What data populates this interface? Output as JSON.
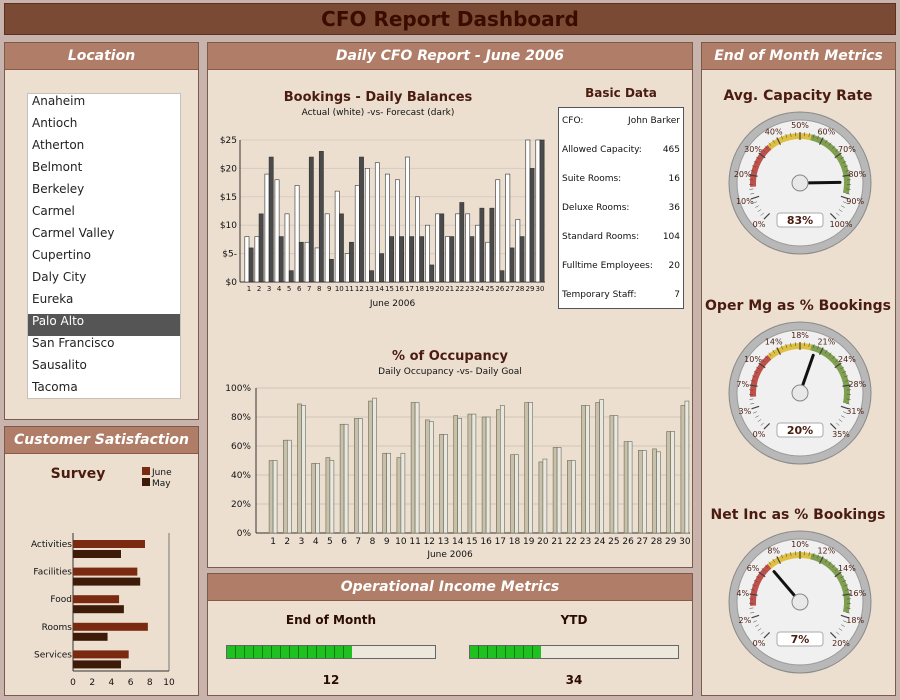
{
  "header": {
    "title": "CFO Report Dashboard"
  },
  "location": {
    "title": "Location",
    "items": [
      "Anaheim",
      "Antioch",
      "Atherton",
      "Belmont",
      "Berkeley",
      "Carmel",
      "Carmel Valley",
      "Cupertino",
      "Daly City",
      "Eureka",
      "Palo Alto",
      "San Francisco",
      "Sausalito",
      "Tacoma"
    ],
    "selected": "Palo Alto"
  },
  "daily": {
    "title": "Daily CFO Report - June 2006"
  },
  "bookings": {
    "chart_data": {
      "type": "bar",
      "title": "Bookings - Daily Balances",
      "subtitle": "Actual (white) -vs- Forecast (dark)",
      "xlabel": "June 2006",
      "ylabel": "",
      "ylim": [
        0,
        25
      ],
      "yticks": [
        "$0",
        "$5-",
        "$10",
        "$15",
        "$20",
        "$25"
      ],
      "categories": [
        "1",
        "2",
        "3",
        "4",
        "5",
        "6",
        "7",
        "8",
        "9",
        "10",
        "11",
        "12",
        "13",
        "14",
        "15",
        "16",
        "17",
        "18",
        "19",
        "20",
        "21",
        "22",
        "23",
        "24",
        "25",
        "26",
        "27",
        "28",
        "29",
        "30"
      ],
      "series": [
        {
          "name": "Actual",
          "color": "#ffffff",
          "values": [
            8,
            8,
            19,
            18,
            12,
            17,
            7,
            6,
            12,
            16,
            5,
            17,
            20,
            21,
            19,
            18,
            22,
            15,
            10,
            12,
            8,
            12,
            12,
            10,
            7,
            18,
            19,
            11,
            25,
            25
          ]
        },
        {
          "name": "Forecast",
          "color": "#4a4a4a",
          "values": [
            6,
            12,
            22,
            8,
            2,
            7,
            22,
            23,
            4,
            12,
            7,
            22,
            2,
            5,
            8,
            8,
            8,
            8,
            3,
            12,
            8,
            14,
            8,
            13,
            13,
            2,
            6,
            8,
            20,
            25
          ]
        }
      ]
    }
  },
  "basic_data": {
    "title": "Basic Data",
    "rows": [
      {
        "label": "CFO:",
        "value": "John Barker"
      },
      {
        "label": "Allowed Capacity:",
        "value": "465"
      },
      {
        "label": "Suite Rooms:",
        "value": "16"
      },
      {
        "label": "Deluxe Rooms:",
        "value": "36"
      },
      {
        "label": "Standard Rooms:",
        "value": "104"
      },
      {
        "label": "Fulltime Employees:",
        "value": "20"
      },
      {
        "label": "Temporary Staff:",
        "value": "7"
      }
    ]
  },
  "occupancy": {
    "chart_data": {
      "type": "bar",
      "title": "% of Occupancy",
      "subtitle": "Daily Occupancy -vs- Daily Goal",
      "xlabel": "June 2006",
      "ylim": [
        0,
        100
      ],
      "yticks": [
        "0%",
        "20%",
        "40%",
        "60%",
        "80%",
        "100%"
      ],
      "categories": [
        "1",
        "2",
        "3",
        "4",
        "5",
        "6",
        "7",
        "8",
        "9",
        "10",
        "11",
        "12",
        "13",
        "14",
        "15",
        "16",
        "17",
        "18",
        "19",
        "20",
        "21",
        "22",
        "23",
        "24",
        "25",
        "26",
        "27",
        "28",
        "29",
        "30"
      ],
      "series": [
        {
          "name": "Occupancy",
          "color": "#c8c0a8",
          "values": [
            50,
            64,
            89,
            48,
            52,
            75,
            79,
            91,
            55,
            52,
            90,
            78,
            68,
            81,
            82,
            80,
            85,
            54,
            90,
            49,
            59,
            50,
            88,
            90,
            81,
            63,
            57,
            58,
            70,
            88
          ]
        },
        {
          "name": "Goal",
          "color": "#e8e8e0",
          "values": [
            50,
            64,
            88,
            48,
            50,
            75,
            79,
            93,
            55,
            55,
            90,
            77,
            68,
            79,
            82,
            80,
            88,
            54,
            90,
            51,
            59,
            50,
            88,
            92,
            81,
            63,
            57,
            56,
            70,
            91
          ]
        }
      ]
    }
  },
  "operational": {
    "title": "Operational Income Metrics",
    "eom": {
      "label": "End of Month",
      "value": "12",
      "fraction": 0.6
    },
    "ytd": {
      "label": "YTD",
      "value": "34",
      "fraction": 0.34
    }
  },
  "satisfaction": {
    "title": "Customer Satisfaction",
    "chart_data": {
      "type": "bar",
      "title": "Survey",
      "categories": [
        "Activities",
        "Facilities",
        "Food",
        "Rooms",
        "Services"
      ],
      "series": [
        {
          "name": "June",
          "color": "#7a2a10",
          "values": [
            7.5,
            6.7,
            4.8,
            7.8,
            5.8
          ]
        },
        {
          "name": "May",
          "color": "#3e1a08",
          "values": [
            5.0,
            7.0,
            5.3,
            3.6,
            5.0
          ]
        }
      ],
      "xlim": [
        0,
        10
      ],
      "xticks": [
        "0",
        "2",
        "4",
        "6",
        "8",
        "10"
      ]
    }
  },
  "metrics": {
    "title": "End of Month Metrics",
    "gauges": [
      {
        "title": "Avg. Capacity Rate",
        "value": 83,
        "display": "83%",
        "min": 0,
        "max": 100,
        "labels": [
          "0%",
          "10%",
          "20%",
          "30%",
          "40%",
          "50%",
          "60%",
          "70%",
          "80%",
          "90%",
          "100%"
        ]
      },
      {
        "title": "Oper Mg as % Bookings",
        "value": 20,
        "display": "20%",
        "min": 0,
        "max": 35,
        "labels": [
          "0%",
          "3%",
          "7%",
          "10%",
          "14%",
          "18%",
          "21%",
          "24%",
          "28%",
          "31%",
          "35%"
        ]
      },
      {
        "title": "Net Inc as % Bookings",
        "value": 7,
        "display": "7%",
        "min": 0,
        "max": 20,
        "labels": [
          "0%",
          "2%",
          "4%",
          "6%",
          "8%",
          "10%",
          "12%",
          "14%",
          "16%",
          "18%",
          "20%"
        ]
      }
    ]
  }
}
